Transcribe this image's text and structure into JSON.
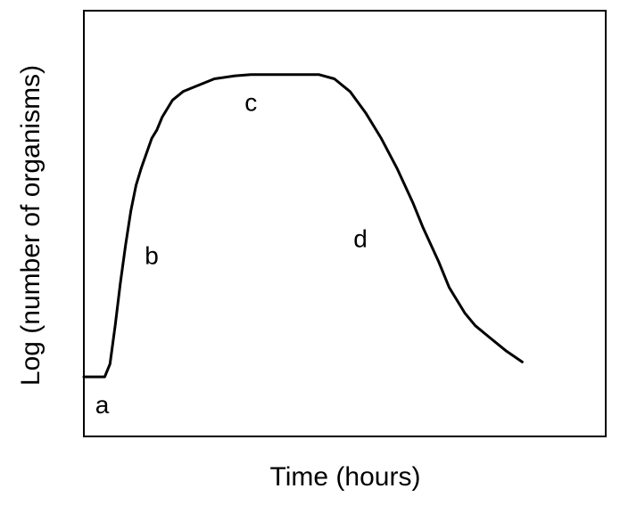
{
  "chart_data": {
    "type": "line",
    "title": "",
    "xlabel": "Time (hours)",
    "ylabel": "Log (number of organisms)",
    "grid": false,
    "legend": "none",
    "x_ticks": [],
    "y_ticks": [],
    "xlim": [
      0,
      100
    ],
    "ylim": [
      0,
      100
    ],
    "series": [
      {
        "color": "#000000",
        "points": [
          {
            "x": 0,
            "y": 14
          },
          {
            "x": 4,
            "y": 14
          },
          {
            "x": 5,
            "y": 17
          },
          {
            "x": 6,
            "y": 26
          },
          {
            "x": 7,
            "y": 36
          },
          {
            "x": 8,
            "y": 45
          },
          {
            "x": 9,
            "y": 53
          },
          {
            "x": 10,
            "y": 59
          },
          {
            "x": 11,
            "y": 63
          },
          {
            "x": 13,
            "y": 70
          },
          {
            "x": 14,
            "y": 72
          },
          {
            "x": 15,
            "y": 75
          },
          {
            "x": 17,
            "y": 79
          },
          {
            "x": 19,
            "y": 81
          },
          {
            "x": 21,
            "y": 82
          },
          {
            "x": 25,
            "y": 84
          },
          {
            "x": 29,
            "y": 84.7
          },
          {
            "x": 32,
            "y": 85
          },
          {
            "x": 40,
            "y": 85
          },
          {
            "x": 45,
            "y": 85
          },
          {
            "x": 48,
            "y": 84
          },
          {
            "x": 51,
            "y": 81
          },
          {
            "x": 54,
            "y": 76
          },
          {
            "x": 57,
            "y": 70
          },
          {
            "x": 60,
            "y": 63
          },
          {
            "x": 63,
            "y": 55
          },
          {
            "x": 65,
            "y": 49
          },
          {
            "x": 68,
            "y": 41
          },
          {
            "x": 70,
            "y": 35
          },
          {
            "x": 73,
            "y": 29
          },
          {
            "x": 75,
            "y": 26
          },
          {
            "x": 78,
            "y": 23
          },
          {
            "x": 81,
            "y": 20
          },
          {
            "x": 84,
            "y": 17.5
          }
        ]
      }
    ],
    "annotations": [
      {
        "text": "a",
        "x": 3.5,
        "y": 7
      },
      {
        "text": "b",
        "x": 13,
        "y": 42
      },
      {
        "text": "c",
        "x": 32,
        "y": 78
      },
      {
        "text": "d",
        "x": 53,
        "y": 46
      }
    ]
  }
}
